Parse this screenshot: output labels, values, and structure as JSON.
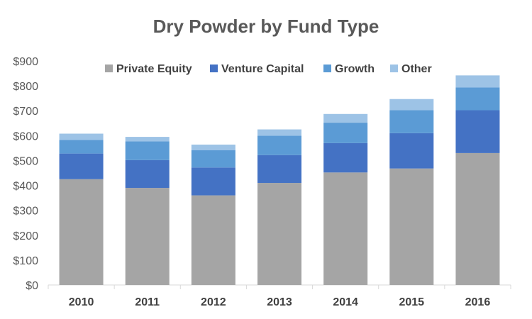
{
  "chart_data": {
    "type": "bar",
    "stacked": true,
    "title": "Dry Powder by Fund Type",
    "xlabel": "",
    "ylabel": "",
    "categories": [
      "2010",
      "2011",
      "2012",
      "2013",
      "2014",
      "2015",
      "2016"
    ],
    "series": [
      {
        "name": "Private Equity",
        "color": "#a5a5a5",
        "values": [
          425,
          390,
          360,
          410,
          452,
          468,
          530
        ]
      },
      {
        "name": "Venture Capital",
        "color": "#4472c4",
        "values": [
          103,
          112,
          112,
          112,
          118,
          142,
          172
        ]
      },
      {
        "name": "Growth",
        "color": "#5b9bd5",
        "values": [
          55,
          75,
          70,
          78,
          82,
          92,
          92
        ]
      },
      {
        "name": "Other",
        "color": "#9dc3e6",
        "values": [
          25,
          18,
          22,
          25,
          35,
          45,
          48
        ]
      }
    ],
    "ylim": [
      0,
      900
    ],
    "yticks": [
      0,
      100,
      200,
      300,
      400,
      500,
      600,
      700,
      800,
      900
    ],
    "ytick_labels": [
      "$0",
      "$100",
      "$200",
      "$300",
      "$400",
      "$500",
      "$600",
      "$700",
      "$800",
      "$900"
    ],
    "grid": false,
    "legend_position": "top"
  }
}
